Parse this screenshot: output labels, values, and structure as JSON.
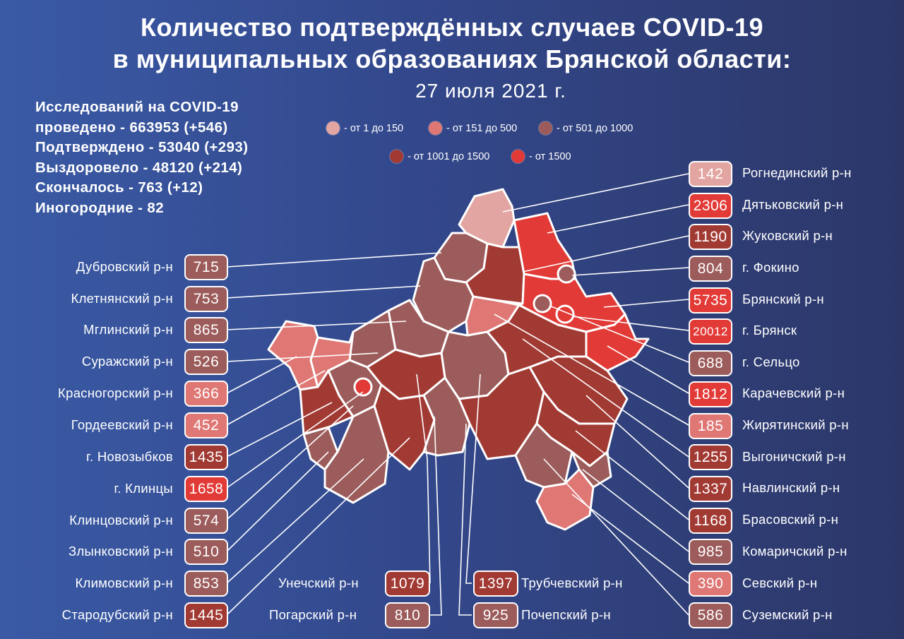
{
  "title_line1": "Количество подтверждённых случаев COVID-19",
  "title_line2": "в муниципальных образованиях Брянской области:",
  "date": "27 июля 2021 г.",
  "stats": [
    "Исследований на COVID-19",
    "проведено - 663953 (+546)",
    "Подтверждено - 53040 (+293)",
    "Выздоровело - 48120 (+214)",
    "Скончалось - 763 (+12)",
    "Иногородние - 82"
  ],
  "legend": [
    {
      "label": "- от 1 до 150",
      "color": "#e3a5a1"
    },
    {
      "label": "- от 151 до 500",
      "color": "#df7775"
    },
    {
      "label": "- от 501 до 1000",
      "color": "#9c5c5b"
    },
    {
      "label": "- от 1001 до 1500",
      "color": "#a23a34"
    },
    {
      "label": "- от 1500",
      "color": "#e23a36"
    }
  ],
  "left_regions": [
    {
      "name": "Дубровский р-н",
      "value": "715",
      "color": "#9c5c5b"
    },
    {
      "name": "Клетнянский р-н",
      "value": "753",
      "color": "#9c5c5b"
    },
    {
      "name": "Мглинский р-н",
      "value": "865",
      "color": "#9c5c5b"
    },
    {
      "name": "Суражский р-н",
      "value": "526",
      "color": "#9c5c5b"
    },
    {
      "name": "Красногорский р-н",
      "value": "366",
      "color": "#df7775"
    },
    {
      "name": "Гордеевский р-н",
      "value": "452",
      "color": "#df7775"
    },
    {
      "name": "г. Новозыбков",
      "value": "1435",
      "color": "#a23a34"
    },
    {
      "name": "г. Клинцы",
      "value": "1658",
      "color": "#e23a36"
    },
    {
      "name": "Клинцовский р-н",
      "value": "574",
      "color": "#9c5c5b"
    },
    {
      "name": "Злынковский р-н",
      "value": "510",
      "color": "#9c5c5b"
    },
    {
      "name": "Климовский  р-н",
      "value": "853",
      "color": "#9c5c5b"
    },
    {
      "name": "Стародубский р-н",
      "value": "1445",
      "color": "#a23a34"
    }
  ],
  "right_regions": [
    {
      "name": "Рогнединский р-н",
      "value": "142",
      "color": "#e3a5a1"
    },
    {
      "name": "Дятьковский р-н",
      "value": "2306",
      "color": "#e23a36"
    },
    {
      "name": "Жуковский р-н",
      "value": "1190",
      "color": "#a23a34"
    },
    {
      "name": "г. Фокино",
      "value": "804",
      "color": "#9c5c5b"
    },
    {
      "name": "Брянский р-н",
      "value": "5735",
      "color": "#e23a36"
    },
    {
      "name": "г. Брянск",
      "value": "20012",
      "color": "#e23a36"
    },
    {
      "name": "г. Сельцо",
      "value": "688",
      "color": "#9c5c5b"
    },
    {
      "name": "Карачевский р-н",
      "value": "1812",
      "color": "#e23a36"
    },
    {
      "name": "Жирятинский р-н",
      "value": "185",
      "color": "#df7775"
    },
    {
      "name": "Выгоничский р-н",
      "value": "1255",
      "color": "#a23a34"
    },
    {
      "name": "Навлинский р-н",
      "value": "1337",
      "color": "#a23a34"
    },
    {
      "name": "Брасовский р-н",
      "value": "1168",
      "color": "#a23a34"
    },
    {
      "name": "Комаричский р-н",
      "value": "985",
      "color": "#9c5c5b"
    },
    {
      "name": "Севский р-н",
      "value": "390",
      "color": "#df7775"
    },
    {
      "name": "Суземский р-н",
      "value": "586",
      "color": "#9c5c5b"
    }
  ],
  "bottom_regions": [
    {
      "name": "Унечский р-н",
      "value": "1079",
      "color": "#a23a34"
    },
    {
      "name": "Погарский р-н",
      "value": "810",
      "color": "#9c5c5b"
    },
    {
      "name": "Трубчевский р-н",
      "value": "1397",
      "color": "#a23a34"
    },
    {
      "name": "Почепский р-н",
      "value": "925",
      "color": "#9c5c5b"
    }
  ]
}
